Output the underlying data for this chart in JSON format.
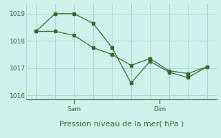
{
  "line1_x": [
    0,
    1,
    2,
    3,
    4,
    5,
    6,
    7,
    8,
    9
  ],
  "line1_y": [
    1018.35,
    1019.0,
    1019.0,
    1018.65,
    1017.75,
    1016.45,
    1017.25,
    1016.85,
    1016.65,
    1017.05
  ],
  "line2_x": [
    0,
    1,
    2,
    3,
    4,
    5,
    6,
    7,
    8,
    9
  ],
  "line2_y": [
    1018.35,
    1018.35,
    1018.2,
    1017.75,
    1017.5,
    1017.1,
    1017.35,
    1016.9,
    1016.8,
    1017.05
  ],
  "sam_x": 2.0,
  "dim_x": 6.5,
  "xlim": [
    -0.5,
    9.5
  ],
  "ylim": [
    1015.85,
    1019.35
  ],
  "yticks": [
    1016,
    1017,
    1018,
    1019
  ],
  "color": "#2d6a2d",
  "bg_color": "#cff0eb",
  "grid_color": "#a8d8d0",
  "xlabel": "Pression niveau de la mer( hPa )",
  "xlabel_fontsize": 8.0
}
